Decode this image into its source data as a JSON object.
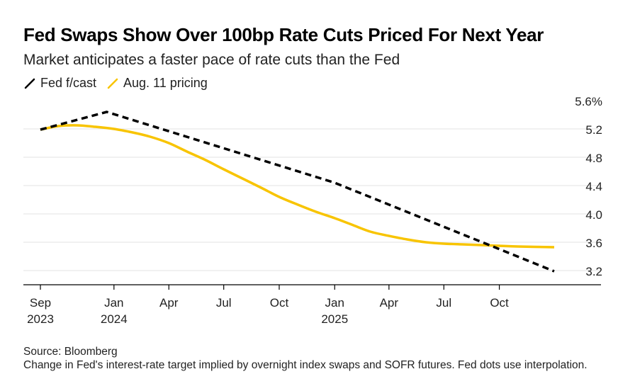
{
  "title": "Fed Swaps Show Over 100bp Rate Cuts Priced For Next Year",
  "subtitle": "Market anticipates a faster pace of rate cuts than the Fed",
  "source": "Source: Bloomberg",
  "note": "Change in Fed's interest-rate target implied by overnight index swaps and SOFR futures. Fed dots use interpolation.",
  "chart_data": {
    "type": "line",
    "legend_position": "top-left",
    "grid": true,
    "ylim": [
      3.05,
      5.6
    ],
    "y_ticks": [
      {
        "value": 5.6,
        "label": "5.6%"
      },
      {
        "value": 5.2,
        "label": "5.2"
      },
      {
        "value": 4.8,
        "label": "4.8"
      },
      {
        "value": 4.4,
        "label": "4.4"
      },
      {
        "value": 4.0,
        "label": "4.0"
      },
      {
        "value": 3.6,
        "label": "3.6"
      },
      {
        "value": 3.2,
        "label": "3.2"
      }
    ],
    "xlim": [
      "2023-09-01",
      "2025-12-31"
    ],
    "x_ticks": [
      {
        "date": "2023-09-01",
        "label": "Sep",
        "sublabel": "2023"
      },
      {
        "date": "2024-01-01",
        "label": "Jan",
        "sublabel": "2024"
      },
      {
        "date": "2024-04-01",
        "label": "Apr",
        "sublabel": ""
      },
      {
        "date": "2024-07-01",
        "label": "Jul",
        "sublabel": ""
      },
      {
        "date": "2024-10-01",
        "label": "Oct",
        "sublabel": ""
      },
      {
        "date": "2025-01-01",
        "label": "Jan",
        "sublabel": "2025"
      },
      {
        "date": "2025-04-01",
        "label": "Apr",
        "sublabel": ""
      },
      {
        "date": "2025-07-01",
        "label": "Jul",
        "sublabel": ""
      },
      {
        "date": "2025-10-01",
        "label": "Oct",
        "sublabel": ""
      }
    ],
    "series": [
      {
        "name": "Fed f/cast",
        "color": "#000000",
        "style": "dashed",
        "points": [
          {
            "x": "2023-09-01",
            "y": 5.19
          },
          {
            "x": "2023-12-20",
            "y": 5.44
          },
          {
            "x": "2025-01-01",
            "y": 4.44
          },
          {
            "x": "2025-12-31",
            "y": 3.19
          }
        ]
      },
      {
        "name": "Aug. 11 pricing",
        "color": "#f8c400",
        "style": "solid",
        "points": [
          {
            "x": "2023-09-01",
            "y": 5.19
          },
          {
            "x": "2023-10-01",
            "y": 5.24
          },
          {
            "x": "2023-11-01",
            "y": 5.25
          },
          {
            "x": "2023-12-01",
            "y": 5.23
          },
          {
            "x": "2024-01-01",
            "y": 5.2
          },
          {
            "x": "2024-02-01",
            "y": 5.15
          },
          {
            "x": "2024-03-01",
            "y": 5.09
          },
          {
            "x": "2024-04-01",
            "y": 5.0
          },
          {
            "x": "2024-05-01",
            "y": 4.88
          },
          {
            "x": "2024-06-01",
            "y": 4.76
          },
          {
            "x": "2024-07-01",
            "y": 4.63
          },
          {
            "x": "2024-08-01",
            "y": 4.5
          },
          {
            "x": "2024-09-01",
            "y": 4.37
          },
          {
            "x": "2024-10-01",
            "y": 4.24
          },
          {
            "x": "2024-11-01",
            "y": 4.13
          },
          {
            "x": "2024-12-01",
            "y": 4.03
          },
          {
            "x": "2025-01-01",
            "y": 3.94
          },
          {
            "x": "2025-02-01",
            "y": 3.84
          },
          {
            "x": "2025-03-01",
            "y": 3.75
          },
          {
            "x": "2025-04-01",
            "y": 3.69
          },
          {
            "x": "2025-05-01",
            "y": 3.64
          },
          {
            "x": "2025-06-01",
            "y": 3.6
          },
          {
            "x": "2025-07-01",
            "y": 3.58
          },
          {
            "x": "2025-08-01",
            "y": 3.57
          },
          {
            "x": "2025-09-01",
            "y": 3.56
          },
          {
            "x": "2025-10-01",
            "y": 3.55
          },
          {
            "x": "2025-11-01",
            "y": 3.54
          },
          {
            "x": "2025-12-31",
            "y": 3.53
          }
        ]
      }
    ]
  }
}
